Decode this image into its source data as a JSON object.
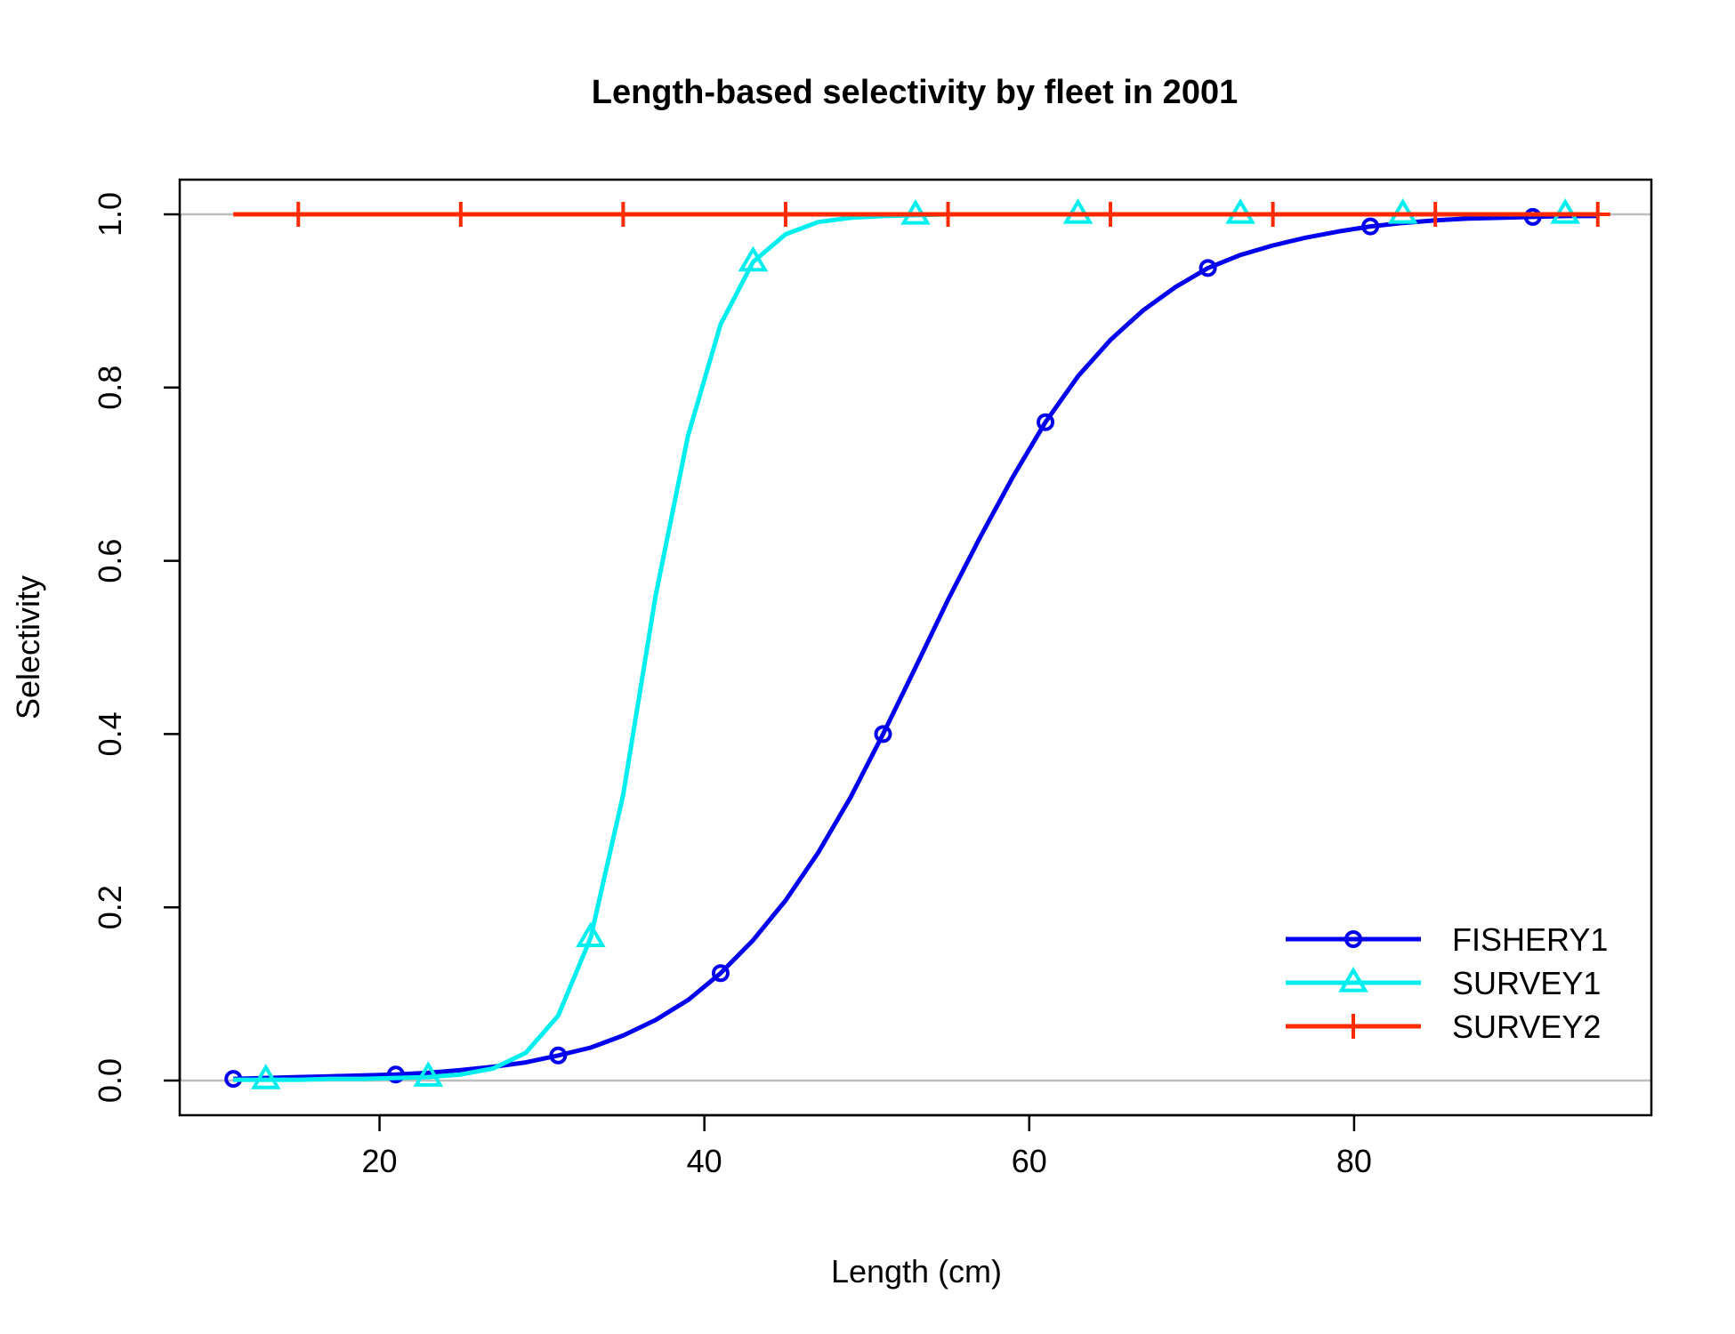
{
  "chart_data": {
    "type": "line",
    "title": "Length-based selectivity by fleet in 2001",
    "xlabel": "Length (cm)",
    "ylabel": "Selectivity",
    "xlim": [
      7.7,
      98.3
    ],
    "ylim": [
      -0.04,
      1.04
    ],
    "x_ticks": [
      20,
      40,
      60,
      80
    ],
    "y_ticks": [
      0.0,
      0.2,
      0.4,
      0.6,
      0.8,
      1.0
    ],
    "reference_lines_y": [
      0,
      1
    ],
    "legend_position": "bottom-right",
    "series": [
      {
        "name": "FISHERY1",
        "color": "#0000ee",
        "marker": "circle",
        "x": [
          11,
          13,
          15,
          17,
          19,
          21,
          23,
          25,
          27,
          29,
          31,
          33,
          35,
          37,
          39,
          41,
          43,
          45,
          47,
          49,
          51,
          53,
          55,
          57,
          59,
          61,
          63,
          65,
          67,
          69,
          71,
          73,
          75,
          77,
          79,
          81,
          83,
          85,
          87,
          89,
          91,
          93,
          95
        ],
        "y": [
          0.002,
          0.003,
          0.004,
          0.005,
          0.006,
          0.007,
          0.009,
          0.012,
          0.016,
          0.021,
          0.029,
          0.038,
          0.052,
          0.07,
          0.093,
          0.124,
          0.162,
          0.208,
          0.263,
          0.327,
          0.4,
          0.477,
          0.555,
          0.628,
          0.697,
          0.76,
          0.813,
          0.855,
          0.889,
          0.916,
          0.938,
          0.953,
          0.964,
          0.973,
          0.98,
          0.986,
          0.99,
          0.993,
          0.995,
          0.996,
          0.997,
          0.998,
          0.998
        ],
        "marker_every": [
          0,
          5,
          10,
          15,
          20,
          25,
          30,
          35,
          40
        ]
      },
      {
        "name": "SURVEY1",
        "color": "#00eeee",
        "marker": "triangle",
        "x": [
          11,
          13,
          15,
          17,
          19,
          21,
          23,
          25,
          27,
          29,
          31,
          33,
          35,
          37,
          39,
          41,
          43,
          45,
          47,
          49,
          51,
          53,
          55,
          57,
          59,
          61,
          63,
          65,
          67,
          69,
          71,
          73,
          75,
          77,
          79,
          81,
          83,
          85,
          87,
          89,
          91,
          93,
          95
        ],
        "y": [
          0.001,
          0.001,
          0.001,
          0.002,
          0.002,
          0.003,
          0.004,
          0.007,
          0.014,
          0.032,
          0.075,
          0.165,
          0.33,
          0.56,
          0.745,
          0.873,
          0.945,
          0.977,
          0.991,
          0.996,
          0.998,
          0.999,
          1.0,
          1.0,
          1.0,
          1.0,
          1.0,
          1.0,
          1.0,
          1.0,
          1.0,
          1.0,
          1.0,
          1.0,
          1.0,
          1.0,
          1.0,
          1.0,
          1.0,
          1.0,
          1.0,
          1.0,
          1.0
        ],
        "marker_every": [
          1,
          6,
          11,
          16,
          21,
          26,
          31,
          36,
          41
        ]
      },
      {
        "name": "SURVEY2",
        "color": "#ff2a00",
        "marker": "plus",
        "x": [
          11,
          13,
          15,
          17,
          19,
          21,
          23,
          25,
          27,
          29,
          31,
          33,
          35,
          37,
          39,
          41,
          43,
          45,
          47,
          49,
          51,
          53,
          55,
          57,
          59,
          61,
          63,
          65,
          67,
          69,
          71,
          73,
          75,
          77,
          79,
          81,
          83,
          85,
          87,
          89,
          91,
          93,
          95
        ],
        "y": [
          1.0,
          1.0,
          1.0,
          1.0,
          1.0,
          1.0,
          1.0,
          1.0,
          1.0,
          1.0,
          1.0,
          1.0,
          1.0,
          1.0,
          1.0,
          1.0,
          1.0,
          1.0,
          1.0,
          1.0,
          1.0,
          1.0,
          1.0,
          1.0,
          1.0,
          1.0,
          1.0,
          1.0,
          1.0,
          1.0,
          1.0,
          1.0,
          1.0,
          1.0,
          1.0,
          1.0,
          1.0,
          1.0,
          1.0,
          1.0,
          1.0,
          1.0,
          1.0
        ],
        "marker_every": [
          2,
          7,
          12,
          17,
          22,
          27,
          32,
          37,
          42
        ]
      }
    ]
  }
}
